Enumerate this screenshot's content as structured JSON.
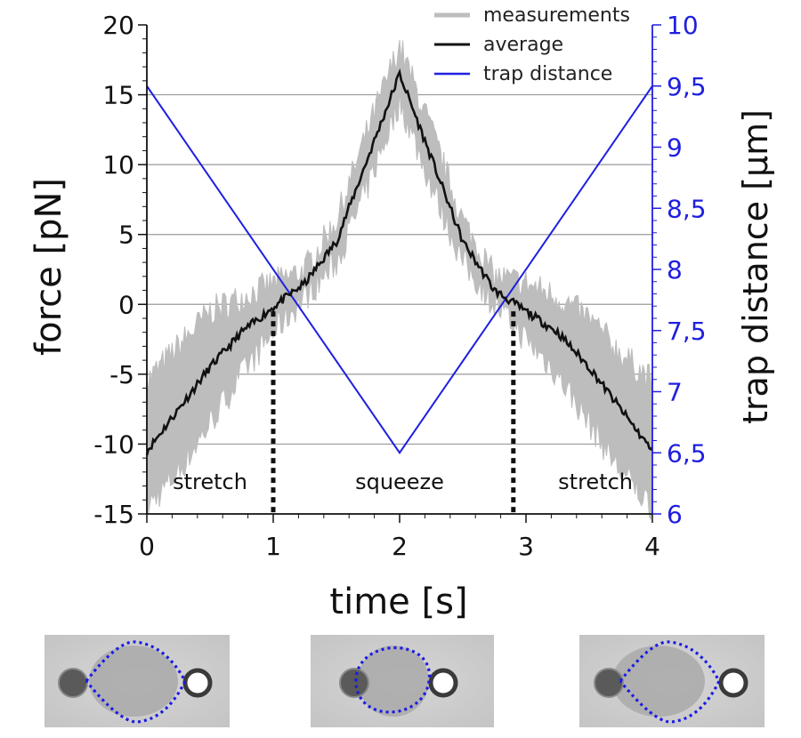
{
  "chart_data": {
    "type": "line",
    "xlabel": "time [s]",
    "ylabel_left": "force [pN]",
    "ylabel_right": "trap distance [µm]",
    "xlim": [
      0,
      4
    ],
    "ylim_left": [
      -15,
      20
    ],
    "ylim_right": [
      6,
      10
    ],
    "x_ticks": [
      "0",
      "1",
      "2",
      "3",
      "4"
    ],
    "y_ticks_left": [
      "-15",
      "-10",
      "-5",
      "0",
      "5",
      "10",
      "15",
      "20"
    ],
    "y_ticks_right": [
      "6",
      "6,5",
      "7",
      "7,5",
      "8",
      "8,5",
      "9",
      "9,5",
      "10"
    ],
    "grid": "horizontal",
    "legend_position": "top-right",
    "legend": [
      "measurements",
      "average",
      "trap distance"
    ],
    "series": [
      {
        "name": "average",
        "axis": "left",
        "x": [
          0,
          0.25,
          0.5,
          0.75,
          1.0,
          1.25,
          1.5,
          1.75,
          2.0,
          2.25,
          2.5,
          2.75,
          3.0,
          3.25,
          3.5,
          3.75,
          4.0
        ],
        "values": [
          -10.5,
          -7.5,
          -4.5,
          -2.0,
          -0.2,
          1.5,
          4.5,
          10.5,
          16.5,
          10.5,
          4.5,
          1.0,
          -0.5,
          -2.0,
          -4.5,
          -7.5,
          -10.5
        ]
      },
      {
        "name": "measurements",
        "axis": "left",
        "x": [
          0,
          0.25,
          0.5,
          0.75,
          1.0,
          1.25,
          1.5,
          1.75,
          2.0,
          2.25,
          2.5,
          2.75,
          3.0,
          3.25,
          3.5,
          3.75,
          4.0
        ],
        "upper": [
          -5.5,
          -3.0,
          -0.5,
          0.5,
          1.5,
          2.5,
          6.0,
          12.5,
          18.5,
          12.5,
          6.0,
          2.0,
          1.5,
          0.5,
          -1.0,
          -3.5,
          -5.5
        ],
        "lower": [
          -14.5,
          -12.0,
          -8.5,
          -5.0,
          -2.0,
          0.5,
          3.0,
          8.5,
          14.5,
          8.5,
          3.0,
          0.0,
          -2.5,
          -5.0,
          -8.5,
          -12.0,
          -14.5
        ]
      },
      {
        "name": "trap distance",
        "axis": "right",
        "x": [
          0,
          2,
          4
        ],
        "values": [
          9.5,
          6.5,
          9.5
        ]
      }
    ],
    "annotations": {
      "phase_dividers_x": [
        1.0,
        2.9
      ],
      "phase_labels": [
        {
          "text": "stretch",
          "x": 0.5
        },
        {
          "text": "squeeze",
          "x": 2.0
        },
        {
          "text": "stretch",
          "x": 3.55
        }
      ]
    },
    "colors": {
      "measurements": "#bdbdbd",
      "average": "#111111",
      "trap_distance": "#1f1fe0",
      "grid": "#9a9a9a",
      "right_axis": "#1f1fe0",
      "outline_dots": "#1a1ae6"
    },
    "inset_images": [
      {
        "phase": "stretch",
        "position": "left"
      },
      {
        "phase": "squeeze",
        "position": "center"
      },
      {
        "phase": "stretch",
        "position": "right"
      }
    ]
  }
}
